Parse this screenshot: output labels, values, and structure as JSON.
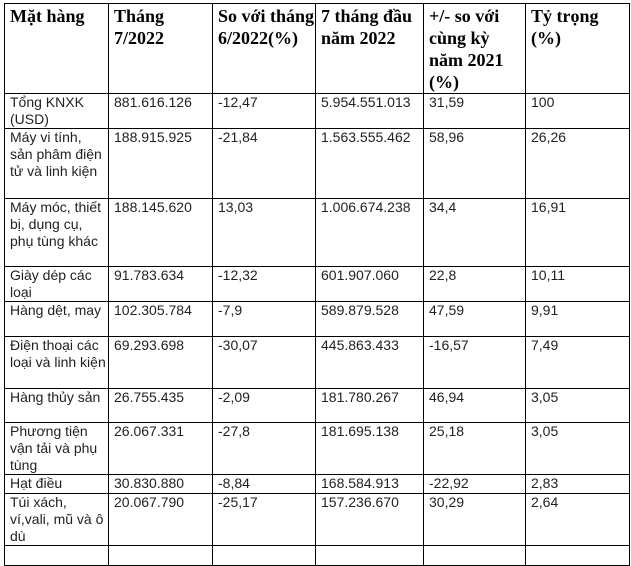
{
  "table": {
    "headers": [
      "Mặt hàng",
      "Tháng 7/2022",
      "So với tháng 6/2022(%)",
      "7 tháng đầu năm 2022",
      "+/- so với cùng kỳ năm 2021 (%)",
      "Tỷ trọng (%)"
    ],
    "rows": [
      [
        "Tổng KNXK (USD)",
        "881.616.126",
        "-12,47",
        "5.954.551.013",
        "31,59",
        "100"
      ],
      [
        "Máy vi tính, sản phâm điện tử và linh kiện",
        "188.915.925",
        "-21,84",
        "1.563.555.462",
        "58,96",
        "26,26"
      ],
      [
        "Máy móc, thiết bị, dụng cụ, phụ tùng khác",
        "188.145.620",
        "13,03",
        "1.006.674.238",
        "34,4",
        "16,91"
      ],
      [
        "Giày dép các loại",
        "91.783.634",
        "-12,32",
        "601.907.060",
        "22,8",
        "10,11"
      ],
      [
        "Hàng dệt, may",
        "102.305.784",
        "-7,9",
        "589.879.528",
        "47,59",
        "9,91"
      ],
      [
        "Điện thoại các loại và linh kiện",
        "69.293.698",
        "-30,07",
        "445.863.433",
        "-16,57",
        "7,49"
      ],
      [
        "Hàng thủy sản",
        "26.755.435",
        "-2,09",
        "181.780.267",
        "46,94",
        "3,05"
      ],
      [
        "Phương tiện vận tải và phụ tùng",
        "26.067.331",
        "-27,8",
        "181.695.138",
        "25,18",
        "3,05"
      ],
      [
        "Hạt điều",
        "30.830.880",
        "-8,84",
        "168.584.913",
        "-22,92",
        "2,83"
      ],
      [
        "Túi xách, ví,vali, mũ và ô dù",
        "20.067.790",
        "-25,17",
        "157.236.670",
        "30,29",
        "2,64"
      ]
    ]
  }
}
